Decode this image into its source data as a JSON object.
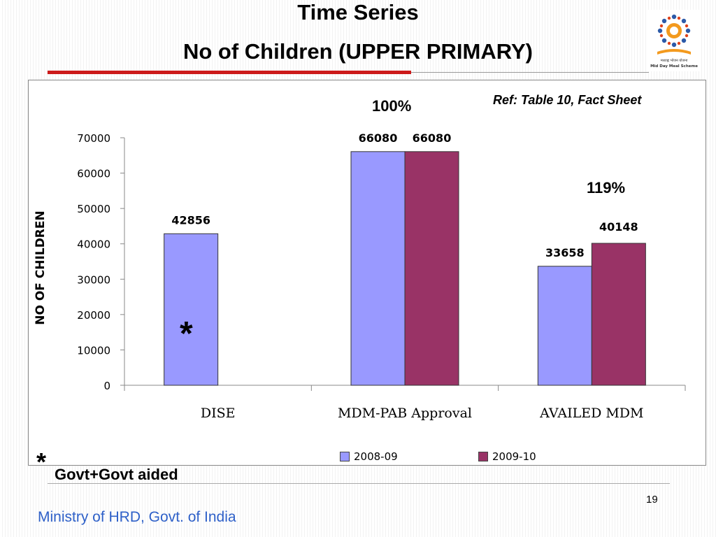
{
  "slide": {
    "title_line1": "Time Series",
    "title_line2": "No of Children (UPPER PRIMARY)",
    "reference": "Ref: Table 10, Fact Sheet",
    "footnote_mark": "*",
    "footnote_text": "Govt+Govt aided",
    "page_number": "19",
    "ministry": "Ministry of HRD, Govt. of India",
    "logo_text": "मध्याह्न भोजन योजना Mid Day Meal Scheme"
  },
  "annotations": {
    "pct_approval": "100%",
    "pct_availed": "119%",
    "dise_star": "*"
  },
  "colors": {
    "series_2008": "#9999ff",
    "series_2009": "#993366",
    "accent_red": "#cc1a1a",
    "ministry_blue": "#2e60c8"
  },
  "chart_data": {
    "type": "bar",
    "title": "",
    "xlabel": "",
    "ylabel": "NO OF CHILDREN",
    "categories": [
      "DISE",
      "MDM-PAB Approval",
      "AVAILED MDM"
    ],
    "ylim": [
      0,
      70000
    ],
    "yticks": [
      0,
      10000,
      20000,
      30000,
      40000,
      50000,
      60000,
      70000
    ],
    "grid": false,
    "legend_position": "bottom",
    "series": [
      {
        "name": "2008-09",
        "values": [
          42856,
          66080,
          33658
        ],
        "labels": [
          "42856",
          "66080",
          "33658"
        ]
      },
      {
        "name": "2009-10",
        "values": [
          null,
          66080,
          40148
        ],
        "labels": [
          "",
          "66080",
          "40148"
        ]
      }
    ]
  }
}
